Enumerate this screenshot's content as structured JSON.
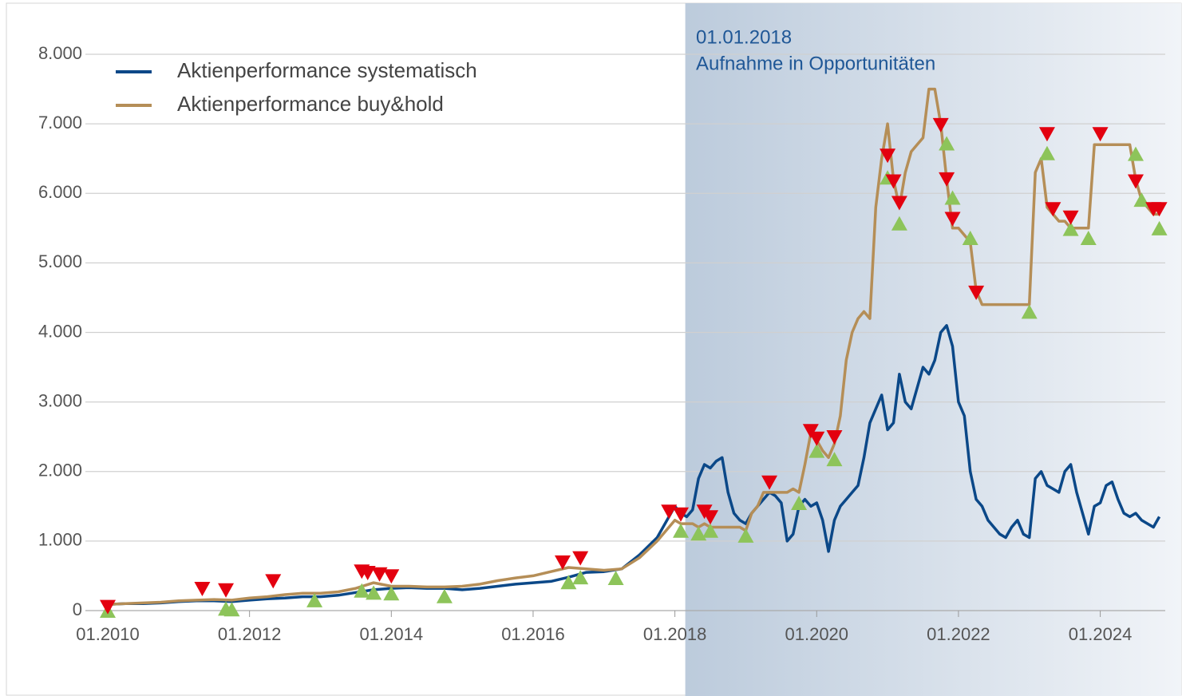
{
  "chart_data": {
    "type": "line",
    "annotation": [
      "01.01.2018",
      "Aufnahme in Opportunitäten"
    ],
    "x": [
      "01.2010",
      "04.2010",
      "07.2010",
      "10.2010",
      "01.2011",
      "04.2011",
      "07.2011",
      "10.2011",
      "01.2012",
      "04.2012",
      "07.2012",
      "10.2012",
      "01.2013",
      "04.2013",
      "07.2013",
      "10.2013",
      "01.2014",
      "04.2014",
      "07.2014",
      "10.2014",
      "01.2015",
      "04.2015",
      "07.2015",
      "10.2015",
      "01.2016",
      "04.2016",
      "07.2016",
      "10.2016",
      "01.2017",
      "04.2017",
      "07.2017",
      "10.2017",
      "01.2018",
      "02.2018",
      "03.2018",
      "04.2018",
      "05.2018",
      "06.2018",
      "07.2018",
      "08.2018",
      "09.2018",
      "10.2018",
      "11.2018",
      "12.2018",
      "01.2019",
      "02.2019",
      "03.2019",
      "04.2019",
      "05.2019",
      "06.2019",
      "07.2019",
      "08.2019",
      "09.2019",
      "10.2019",
      "11.2019",
      "12.2019",
      "01.2020",
      "02.2020",
      "03.2020",
      "04.2020",
      "05.2020",
      "06.2020",
      "07.2020",
      "08.2020",
      "09.2020",
      "10.2020",
      "11.2020",
      "12.2020",
      "01.2021",
      "02.2021",
      "03.2021",
      "04.2021",
      "05.2021",
      "06.2021",
      "07.2021",
      "08.2021",
      "09.2021",
      "10.2021",
      "11.2021",
      "12.2021",
      "01.2022",
      "02.2022",
      "03.2022",
      "04.2022",
      "05.2022",
      "06.2022",
      "07.2022",
      "08.2022",
      "09.2022",
      "10.2022",
      "11.2022",
      "12.2022",
      "01.2023",
      "02.2023",
      "03.2023",
      "04.2023",
      "05.2023",
      "06.2023",
      "07.2023",
      "08.2023",
      "09.2023",
      "10.2023",
      "11.2023",
      "12.2023",
      "01.2024",
      "02.2024",
      "03.2024",
      "04.2024",
      "05.2024",
      "06.2024",
      "07.2024",
      "08.2024",
      "09.2024",
      "10.2024",
      "11.2024"
    ],
    "series": [
      {
        "name": "Aktienperformance systematisch",
        "color": "#0b4888",
        "values": [
          90,
          100,
          100,
          110,
          130,
          140,
          140,
          130,
          150,
          170,
          180,
          200,
          200,
          220,
          260,
          300,
          320,
          330,
          320,
          320,
          300,
          320,
          350,
          380,
          400,
          420,
          480,
          550,
          560,
          600,
          800,
          1050,
          1500,
          1400,
          1350,
          1450,
          1900,
          2100,
          2050,
          2150,
          2200,
          1700,
          1400,
          1300,
          1250,
          1400,
          1500,
          1600,
          1700,
          1650,
          1550,
          1000,
          1100,
          1500,
          1600,
          1500,
          1550,
          1300,
          850,
          1300,
          1500,
          1600,
          1700,
          1800,
          2200,
          2700,
          2900,
          3100,
          2600,
          2700,
          3400,
          3000,
          2900,
          3200,
          3500,
          3400,
          3600,
          4000,
          4100,
          3800,
          3000,
          2800,
          2000,
          1600,
          1500,
          1300,
          1200,
          1100,
          1050,
          1200,
          1300,
          1100,
          1050,
          1900,
          2000,
          1800,
          1750,
          1700,
          2000,
          2100,
          1700,
          1400,
          1100,
          1500,
          1550,
          1800,
          1850,
          1600,
          1400,
          1350,
          1400,
          1300,
          1250,
          1200,
          1350
        ]
      },
      {
        "name": "Aktienperformance buy&hold",
        "color": "#b58e57",
        "values": [
          90,
          100,
          110,
          120,
          140,
          150,
          160,
          150,
          180,
          200,
          230,
          250,
          250,
          270,
          320,
          400,
          350,
          350,
          340,
          340,
          350,
          380,
          430,
          470,
          500,
          560,
          620,
          600,
          580,
          600,
          760,
          1000,
          1300,
          1250,
          1250,
          1250,
          1200,
          1250,
          1200,
          1200,
          1200,
          1200,
          1200,
          1200,
          1150,
          1400,
          1500,
          1700,
          1700,
          1700,
          1700,
          1700,
          1750,
          1700,
          2100,
          2550,
          2450,
          2300,
          2200,
          2400,
          2800,
          3600,
          4000,
          4200,
          4300,
          4200,
          5800,
          6500,
          7000,
          6200,
          5800,
          6300,
          6600,
          6700,
          6800,
          7500,
          7500,
          7000,
          6200,
          5500,
          5500,
          5400,
          5300,
          4600,
          4400,
          4400,
          4400,
          4400,
          4400,
          4400,
          4400,
          4400,
          4400,
          6300,
          6500,
          5800,
          5700,
          5600,
          5600,
          5500,
          5500,
          5500,
          5500,
          6700,
          6700,
          6700,
          6700,
          6700,
          6700,
          6700,
          6200,
          5900,
          5800,
          5700,
          5700
        ]
      }
    ],
    "sell_signals": {
      "color": "#e3000f",
      "x": [
        "01.2010",
        "05.2011",
        "09.2011",
        "05.2012",
        "08.2013",
        "09.2013",
        "11.2013",
        "01.2014",
        "06.2016",
        "09.2016",
        "12.2017",
        "02.2018",
        "06.2018",
        "07.2018",
        "05.2019",
        "12.2019",
        "01.2020",
        "04.2020",
        "01.2021",
        "02.2021",
        "03.2021",
        "10.2021",
        "11.2021",
        "12.2021",
        "04.2022",
        "04.2023",
        "05.2023",
        "08.2023",
        "01.2024",
        "07.2024",
        "10.2024",
        "11.2024"
      ],
      "values": [
        50,
        310,
        290,
        420,
        560,
        540,
        520,
        490,
        690,
        750,
        1420,
        1380,
        1420,
        1340,
        1840,
        2580,
        2470,
        2490,
        6540,
        6170,
        5860,
        6980,
        6200,
        5630,
        4570,
        6850,
        5770,
        5650,
        6850,
        6170,
        5770,
        5770
      ]
    },
    "buy_signals": {
      "color": "#8dc45a",
      "x": [
        "01.2010",
        "09.2011",
        "10.2011",
        "12.2012",
        "08.2013",
        "10.2013",
        "01.2014",
        "10.2014",
        "07.2016",
        "09.2016",
        "03.2017",
        "02.2018",
        "05.2018",
        "07.2018",
        "01.2019",
        "10.2019",
        "01.2020",
        "04.2020",
        "01.2021",
        "03.2021",
        "11.2021",
        "12.2021",
        "03.2022",
        "01.2023",
        "04.2023",
        "08.2023",
        "11.2023",
        "07.2024",
        "08.2024",
        "11.2024"
      ],
      "values": [
        0,
        30,
        20,
        150,
        290,
        260,
        250,
        210,
        410,
        480,
        470,
        1150,
        1110,
        1150,
        1080,
        1550,
        2300,
        2180,
        6230,
        5570,
        6720,
        5940,
        5360,
        4300,
        6580,
        5490,
        5360,
        6570,
        5910,
        5500
      ]
    },
    "xlim": [
      "01.2010",
      "12.2024"
    ],
    "xticks": [
      "01.2010",
      "01.2012",
      "01.2014",
      "01.2016",
      "01.2018",
      "01.2020",
      "01.2022",
      "01.2024"
    ],
    "ylim": [
      0,
      8000
    ],
    "yticks": [
      0,
      {
        "value": 1000,
        "label": "1.000"
      },
      {
        "value": 2000,
        "label": "2.000"
      },
      {
        "value": 3000,
        "label": "3.000"
      },
      {
        "value": 4000,
        "label": "4.000"
      },
      {
        "value": 5000,
        "label": "5.000"
      },
      {
        "value": 6000,
        "label": "6.000"
      },
      {
        "value": 7000,
        "label": "7.000"
      },
      {
        "value": 8000,
        "label": "8.000"
      }
    ],
    "grid": true
  }
}
